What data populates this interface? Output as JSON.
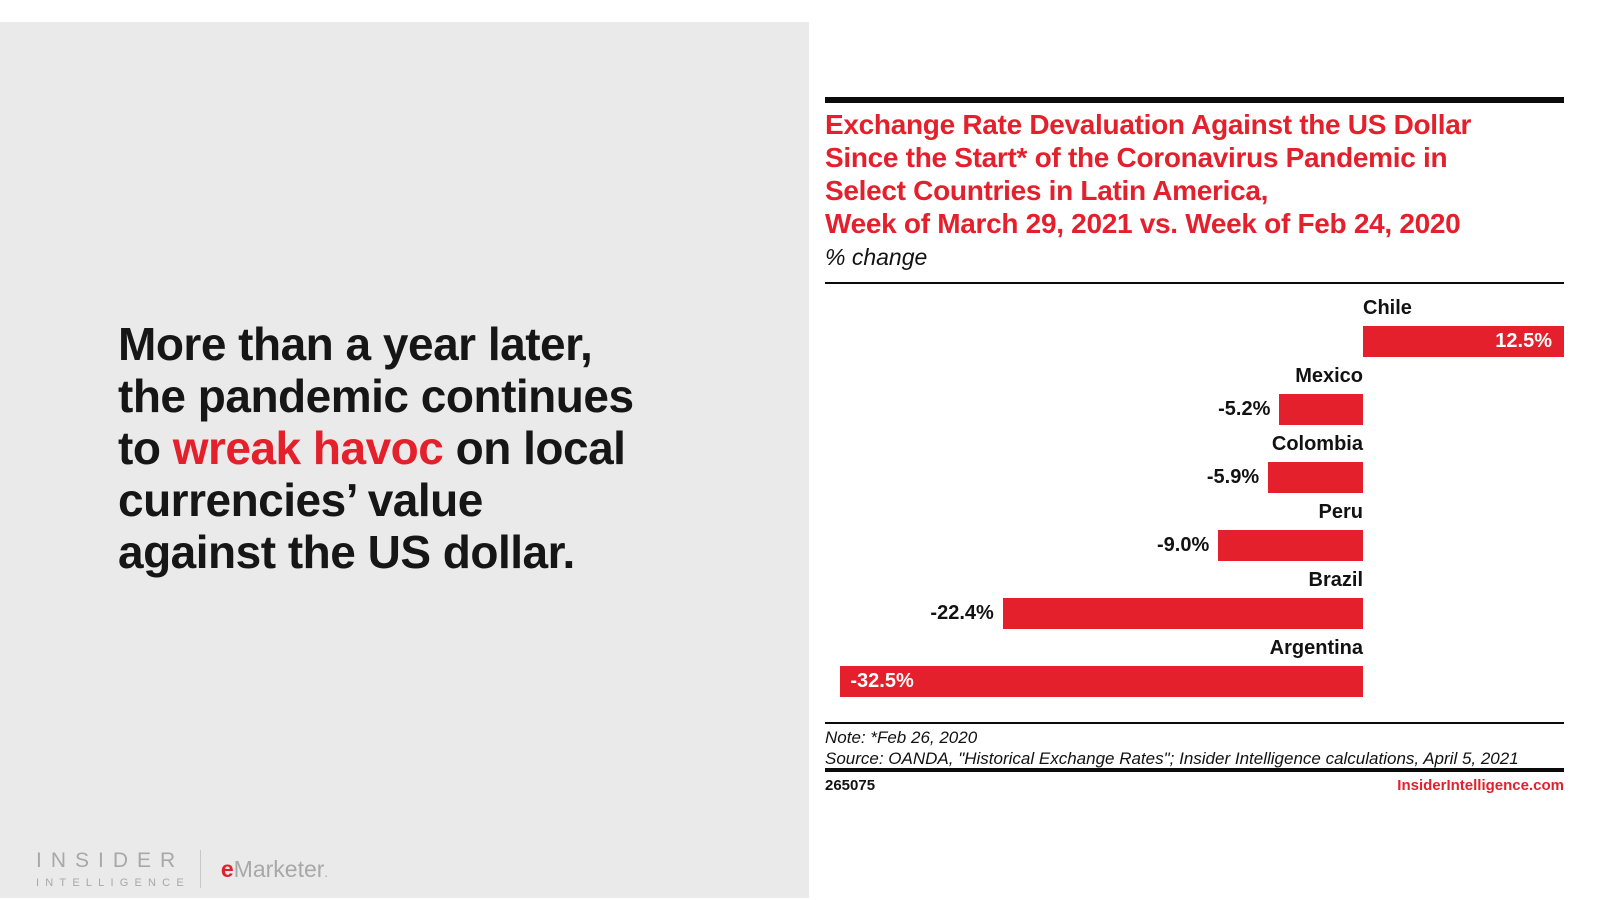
{
  "palette": {
    "accent_red": "#E4202C",
    "panel_gray": "#EAEAEA",
    "text_black": "#121212",
    "logo_gray": "#A8A8A8"
  },
  "left_panel": {
    "headline": {
      "line1": "More than a year later,",
      "line2": "the pandemic continues",
      "line3_pre": "to ",
      "line3_red": "wreak havoc",
      "line3_post": " on local",
      "line4": "currencies’ value",
      "line5": "against the US dollar."
    },
    "logo": {
      "brand_top": "INSIDER",
      "brand_bottom": "INTELLIGENCE",
      "partner_e": "e",
      "partner_rest": "Marketer",
      "partner_dot": "."
    }
  },
  "chart": {
    "title_lines": [
      "Exchange Rate Devaluation Against the US Dollar",
      "Since the Start* of the Coronavirus Pandemic in",
      "Select Countries in Latin America,",
      "Week of March 29, 2021 vs. Week of Feb 24, 2020"
    ],
    "subtitle": "% change",
    "note": "Note: *Feb 26, 2020",
    "source": "Source: OANDA, \"Historical Exchange Rates\"; Insider Intelligence calculations, April 5, 2021",
    "footer_id": "265075",
    "footer_site": "InsiderIntelligence.com"
  },
  "chart_data": {
    "type": "bar",
    "orientation": "horizontal",
    "title": "Exchange Rate Devaluation Against the US Dollar Since the Start* of the Coronavirus Pandemic in Select Countries in Latin America, Week of March 29, 2021 vs. Week of Feb 24, 2020",
    "unit": "% change",
    "categories": [
      "Chile",
      "Mexico",
      "Colombia",
      "Peru",
      "Brazil",
      "Argentina"
    ],
    "values": [
      12.5,
      -5.2,
      -5.9,
      -9.0,
      -22.4,
      -32.5
    ],
    "value_labels": [
      "12.5%",
      "-5.2%",
      "-5.9%",
      "-9.0%",
      "-22.4%",
      "-32.5%"
    ],
    "value_label_placement": [
      "inside-end",
      "outside-start",
      "outside-start",
      "outside-start",
      "outside-start",
      "inside-start"
    ],
    "bar_color": "#E4202C",
    "inside_label_color": "#ffffff",
    "outside_label_color": "#121212",
    "axis_range": [
      -32.5,
      12.5
    ],
    "grid": false,
    "legend": false
  }
}
